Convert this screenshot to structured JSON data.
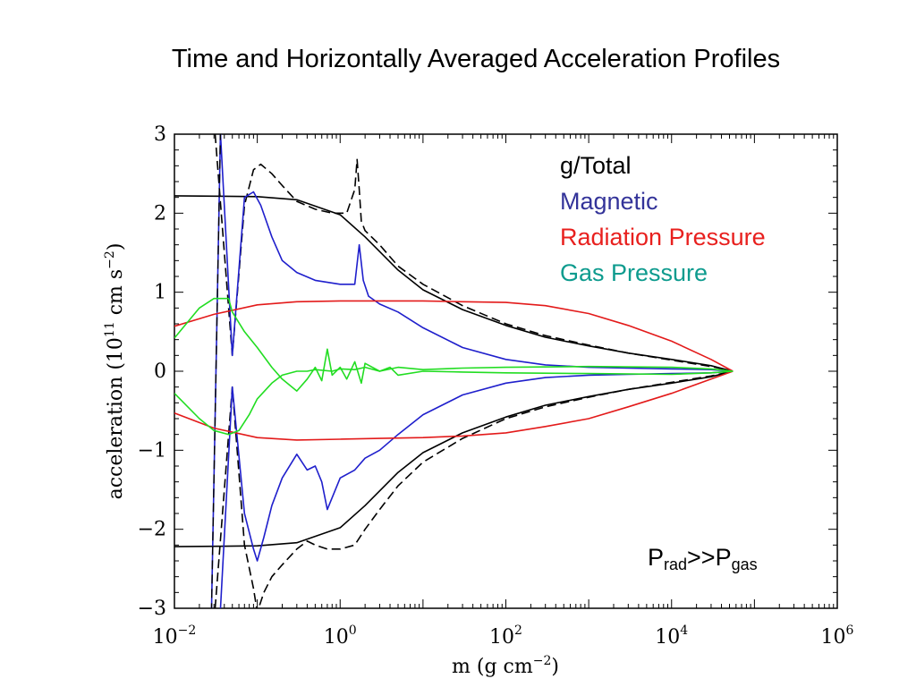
{
  "title": "Time and Horizontally Averaged Acceleration Profiles",
  "colors": {
    "total": "#000000",
    "magnetic": "#1f1fcc",
    "radiation": "#e31a1a",
    "gas": "#22dd22",
    "legend_magnetic": "#333399",
    "legend_radiation": "#e8201e",
    "legend_gas": "#0e9b8e"
  },
  "chart_data": {
    "type": "line",
    "title": "Time and Horizontally Averaged Acceleration Profiles",
    "xlabel": "m (g cm",
    "xlabel_exp": "−2",
    "xlabel_close": ")",
    "ylabel": "acceleration (10",
    "ylabel_exp1": "11",
    "ylabel_mid": " cm s",
    "ylabel_exp2": "−2",
    "ylabel_close": ")",
    "x_scale": "log",
    "xlim": [
      0.01,
      1000000
    ],
    "ylim": [
      -3,
      3
    ],
    "x_ticks": [
      {
        "base": "10",
        "exp": "−2",
        "value": 0.01
      },
      {
        "base": "10",
        "exp": "0",
        "value": 1
      },
      {
        "base": "10",
        "exp": "2",
        "value": 100
      },
      {
        "base": "10",
        "exp": "4",
        "value": 10000
      },
      {
        "base": "10",
        "exp": "6",
        "value": 1000000
      }
    ],
    "y_ticks": [
      {
        "label": "3",
        "value": 3
      },
      {
        "label": "2",
        "value": 2
      },
      {
        "label": "1",
        "value": 1
      },
      {
        "label": "0",
        "value": 0
      },
      {
        "label": "−1",
        "value": -1
      },
      {
        "label": "−2",
        "value": -2
      },
      {
        "label": "−3",
        "value": -3
      }
    ],
    "legend": {
      "placement": "top-right",
      "entries": [
        "g/Total",
        "Magnetic",
        "Radiation Pressure",
        "Gas Pressure"
      ]
    },
    "annotation": {
      "main": "P",
      "sub1": "rad",
      "mid": ">>P",
      "sub2": "gas"
    },
    "series": [
      {
        "key": "g_upper",
        "color_key": "total",
        "dash": false,
        "x": [
          0.01,
          0.1,
          0.3,
          1,
          2,
          5,
          10,
          30,
          100,
          300,
          1000,
          3000,
          10000,
          30000,
          55000
        ],
        "y": [
          2.22,
          2.21,
          2.17,
          1.98,
          1.7,
          1.28,
          1.03,
          0.78,
          0.58,
          0.43,
          0.32,
          0.23,
          0.15,
          0.07,
          0.0
        ]
      },
      {
        "key": "g_lower",
        "color_key": "total",
        "dash": false,
        "x": [
          0.01,
          0.1,
          0.3,
          1,
          2,
          5,
          10,
          30,
          100,
          300,
          1000,
          3000,
          10000,
          30000,
          55000
        ],
        "y": [
          -2.22,
          -2.21,
          -2.17,
          -1.98,
          -1.7,
          -1.28,
          -1.03,
          -0.78,
          -0.58,
          -0.43,
          -0.32,
          -0.23,
          -0.15,
          -0.07,
          0.0
        ]
      },
      {
        "key": "total_upper",
        "color_key": "total",
        "dash": true,
        "x": [
          0.031,
          0.05,
          0.07,
          0.09,
          0.11,
          0.15,
          0.2,
          0.3,
          0.5,
          0.8,
          1.2,
          1.5,
          1.6,
          1.7,
          1.8,
          2,
          3,
          5,
          10,
          30,
          100,
          300,
          1000,
          3000,
          10000,
          30000,
          55000
        ],
        "y": [
          3.0,
          0.2,
          2.1,
          2.55,
          2.62,
          2.5,
          2.35,
          2.15,
          2.05,
          2.0,
          2.0,
          2.3,
          2.68,
          2.3,
          1.9,
          1.78,
          1.6,
          1.33,
          1.1,
          0.83,
          0.6,
          0.45,
          0.33,
          0.23,
          0.14,
          0.06,
          0.0
        ]
      },
      {
        "key": "total_lower",
        "color_key": "total",
        "dash": true,
        "x": [
          0.031,
          0.05,
          0.07,
          0.09,
          0.1,
          0.12,
          0.15,
          0.2,
          0.3,
          0.4,
          0.5,
          0.7,
          1,
          1.5,
          2,
          3,
          5,
          10,
          30,
          100,
          300,
          1000,
          3000,
          10000,
          30000,
          55000
        ],
        "y": [
          -3.0,
          -0.2,
          -2.2,
          -2.75,
          -3.05,
          -2.8,
          -2.6,
          -2.45,
          -2.25,
          -2.15,
          -2.2,
          -2.25,
          -2.25,
          -2.2,
          -2.0,
          -1.75,
          -1.45,
          -1.15,
          -0.85,
          -0.6,
          -0.45,
          -0.33,
          -0.23,
          -0.14,
          -0.06,
          0.0
        ]
      },
      {
        "key": "mag_spike",
        "color_key": "magnetic",
        "dash": false,
        "x": [
          0.028,
          0.036
        ],
        "y": [
          -3.05,
          3.05
        ]
      },
      {
        "key": "mag_upper",
        "color_key": "magnetic",
        "dash": false,
        "x": [
          0.036,
          0.05,
          0.07,
          0.09,
          0.11,
          0.15,
          0.2,
          0.3,
          0.5,
          1,
          1.5,
          1.7,
          1.9,
          2.2,
          3,
          5,
          10,
          30,
          100,
          300,
          1000,
          3000,
          10000,
          30000,
          55000
        ],
        "y": [
          3.0,
          0.2,
          2.2,
          2.27,
          2.1,
          1.7,
          1.4,
          1.25,
          1.15,
          1.1,
          1.1,
          1.6,
          1.15,
          0.95,
          0.85,
          0.75,
          0.55,
          0.3,
          0.15,
          0.08,
          0.05,
          0.04,
          0.03,
          0.02,
          0.0
        ]
      },
      {
        "key": "mag_lower",
        "color_key": "magnetic",
        "dash": false,
        "x": [
          0.036,
          0.05,
          0.07,
          0.09,
          0.1,
          0.12,
          0.15,
          0.2,
          0.3,
          0.4,
          0.5,
          0.6,
          0.7,
          1,
          1.5,
          2,
          3,
          5,
          10,
          30,
          100,
          300,
          1000,
          3000,
          10000,
          30000,
          55000
        ],
        "y": [
          -3.0,
          -0.2,
          -1.8,
          -2.25,
          -2.4,
          -2.1,
          -1.7,
          -1.35,
          -1.05,
          -1.25,
          -1.2,
          -1.4,
          -1.75,
          -1.35,
          -1.25,
          -1.1,
          -1.0,
          -0.8,
          -0.55,
          -0.3,
          -0.15,
          -0.08,
          -0.05,
          -0.04,
          -0.03,
          -0.02,
          0.0
        ]
      },
      {
        "key": "rad_upper",
        "color_key": "radiation",
        "dash": false,
        "x": [
          0.01,
          0.03,
          0.1,
          0.3,
          1,
          3,
          10,
          30,
          100,
          300,
          1000,
          3000,
          10000,
          30000,
          55000
        ],
        "y": [
          0.57,
          0.72,
          0.84,
          0.88,
          0.89,
          0.89,
          0.89,
          0.88,
          0.87,
          0.83,
          0.73,
          0.58,
          0.38,
          0.15,
          0.0
        ]
      },
      {
        "key": "rad_lower",
        "color_key": "radiation",
        "dash": false,
        "x": [
          0.01,
          0.03,
          0.1,
          0.3,
          1,
          3,
          10,
          30,
          100,
          300,
          1000,
          3000,
          10000,
          30000,
          55000
        ],
        "y": [
          -0.53,
          -0.72,
          -0.84,
          -0.87,
          -0.86,
          -0.85,
          -0.84,
          -0.82,
          -0.78,
          -0.7,
          -0.6,
          -0.45,
          -0.28,
          -0.1,
          0.0
        ]
      },
      {
        "key": "gas_upper",
        "color_key": "gas",
        "dash": false,
        "x": [
          0.01,
          0.02,
          0.03,
          0.045,
          0.05,
          0.07,
          0.1,
          0.15,
          0.2,
          0.3,
          0.4,
          0.5,
          0.6,
          0.7,
          0.8,
          1,
          1.2,
          1.5,
          1.8,
          2,
          3,
          5,
          10,
          30,
          100,
          1000,
          10000,
          30000,
          55000
        ],
        "y": [
          0.42,
          0.8,
          0.92,
          0.92,
          0.75,
          0.5,
          0.3,
          0.05,
          -0.1,
          -0.25,
          -0.1,
          0.05,
          -0.12,
          0.28,
          -0.05,
          0.05,
          -0.1,
          0.12,
          -0.15,
          0.1,
          0.0,
          0.05,
          0.02,
          0.04,
          0.05,
          0.06,
          0.05,
          0.03,
          0.0
        ]
      },
      {
        "key": "gas_lower",
        "color_key": "gas",
        "dash": false,
        "x": [
          0.01,
          0.02,
          0.03,
          0.045,
          0.06,
          0.08,
          0.1,
          0.15,
          0.2,
          0.3,
          0.4,
          0.5,
          0.8,
          1,
          1.5,
          2,
          3,
          4,
          5,
          10,
          30,
          100,
          1000,
          10000,
          30000,
          55000
        ],
        "y": [
          -0.28,
          -0.6,
          -0.75,
          -0.8,
          -0.75,
          -0.55,
          -0.35,
          -0.15,
          -0.05,
          0.0,
          0.0,
          0.02,
          0.0,
          0.03,
          0.02,
          0.05,
          0.0,
          0.05,
          -0.05,
          0.0,
          -0.01,
          -0.02,
          -0.03,
          -0.04,
          -0.02,
          0.0
        ]
      }
    ]
  }
}
